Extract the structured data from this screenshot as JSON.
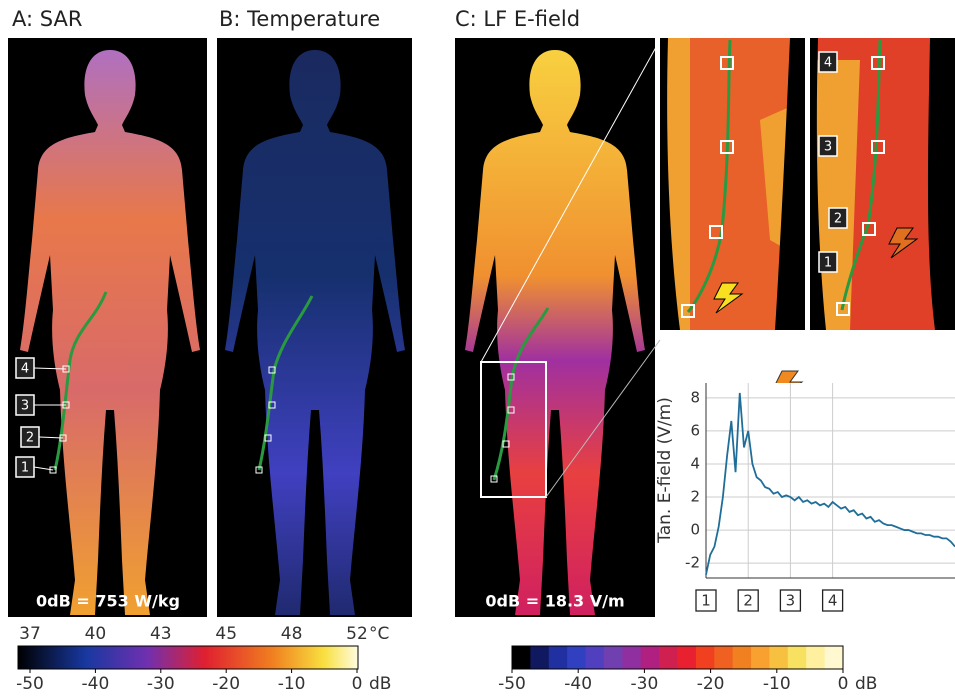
{
  "panels": [
    {
      "title": "A: SAR",
      "note": "0dB = 753 W/kg",
      "markers": [
        "1",
        "2",
        "3",
        "4"
      ]
    },
    {
      "title": "B: Temperature"
    },
    {
      "title": "C: LF E-field",
      "note": "0dB = 18.3 V/m"
    }
  ],
  "zoom_markers": [
    "4",
    "3",
    "2",
    "1"
  ],
  "chart_data": {
    "type": "line",
    "ylabel": "Tan. E-field (V/m)",
    "x": [
      1.0,
      1.1,
      1.2,
      1.3,
      1.4,
      1.5,
      1.6,
      1.7,
      1.8,
      1.9,
      2.0,
      2.1,
      2.2,
      2.3,
      2.4,
      2.5,
      2.6,
      2.7,
      2.8,
      2.9,
      3.0,
      3.1,
      3.2,
      3.3,
      3.4,
      3.5,
      3.6,
      3.7,
      3.8,
      3.9,
      4.0,
      4.1,
      4.2,
      4.3,
      4.4,
      4.5,
      4.6,
      4.7,
      4.8,
      4.9,
      5.0,
      5.1,
      5.2,
      5.3,
      5.4,
      5.5,
      5.6,
      5.7,
      5.8,
      5.9,
      6.0,
      6.1,
      6.2,
      6.3,
      6.4,
      6.5,
      6.6,
      6.7,
      6.8,
      6.9
    ],
    "series": [
      {
        "color": "#1f6e99",
        "values": [
          -2.7,
          -1.5,
          -1.0,
          0.2,
          2.0,
          4.5,
          6.6,
          3.5,
          8.3,
          5.0,
          6.0,
          4.0,
          3.2,
          3.0,
          2.6,
          2.5,
          2.2,
          2.3,
          2.0,
          2.1,
          2.0,
          1.8,
          2.0,
          1.7,
          1.8,
          1.6,
          1.7,
          1.5,
          1.6,
          1.4,
          1.7,
          1.5,
          1.3,
          1.4,
          1.1,
          1.2,
          0.9,
          1.0,
          0.7,
          0.8,
          0.5,
          0.6,
          0.4,
          0.3,
          0.3,
          0.2,
          0.1,
          0.0,
          0.0,
          -0.1,
          -0.2,
          -0.2,
          -0.3,
          -0.3,
          -0.4,
          -0.4,
          -0.5,
          -0.5,
          -0.7,
          -1.0
        ]
      }
    ],
    "xlim": [
      1,
      6.9
    ],
    "xticks": [
      1,
      2,
      3,
      4
    ],
    "ylim": [
      -2.9,
      8.9
    ],
    "yticks": [
      -2,
      0,
      2,
      4,
      6,
      8
    ],
    "grid": true
  },
  "colorbars": [
    {
      "style": "continuous",
      "top_ticks": [
        37,
        40,
        43,
        45,
        48,
        52
      ],
      "top_unit": "°C",
      "lim": [
        -50,
        0
      ],
      "ticks": [
        -50,
        -40,
        -30,
        -20,
        -10,
        0
      ],
      "unit": "dB"
    },
    {
      "style": "discrete",
      "lim": [
        -50,
        0
      ],
      "ticks": [
        -50,
        -40,
        -30,
        -20,
        -10,
        0
      ],
      "unit": "dB"
    }
  ]
}
